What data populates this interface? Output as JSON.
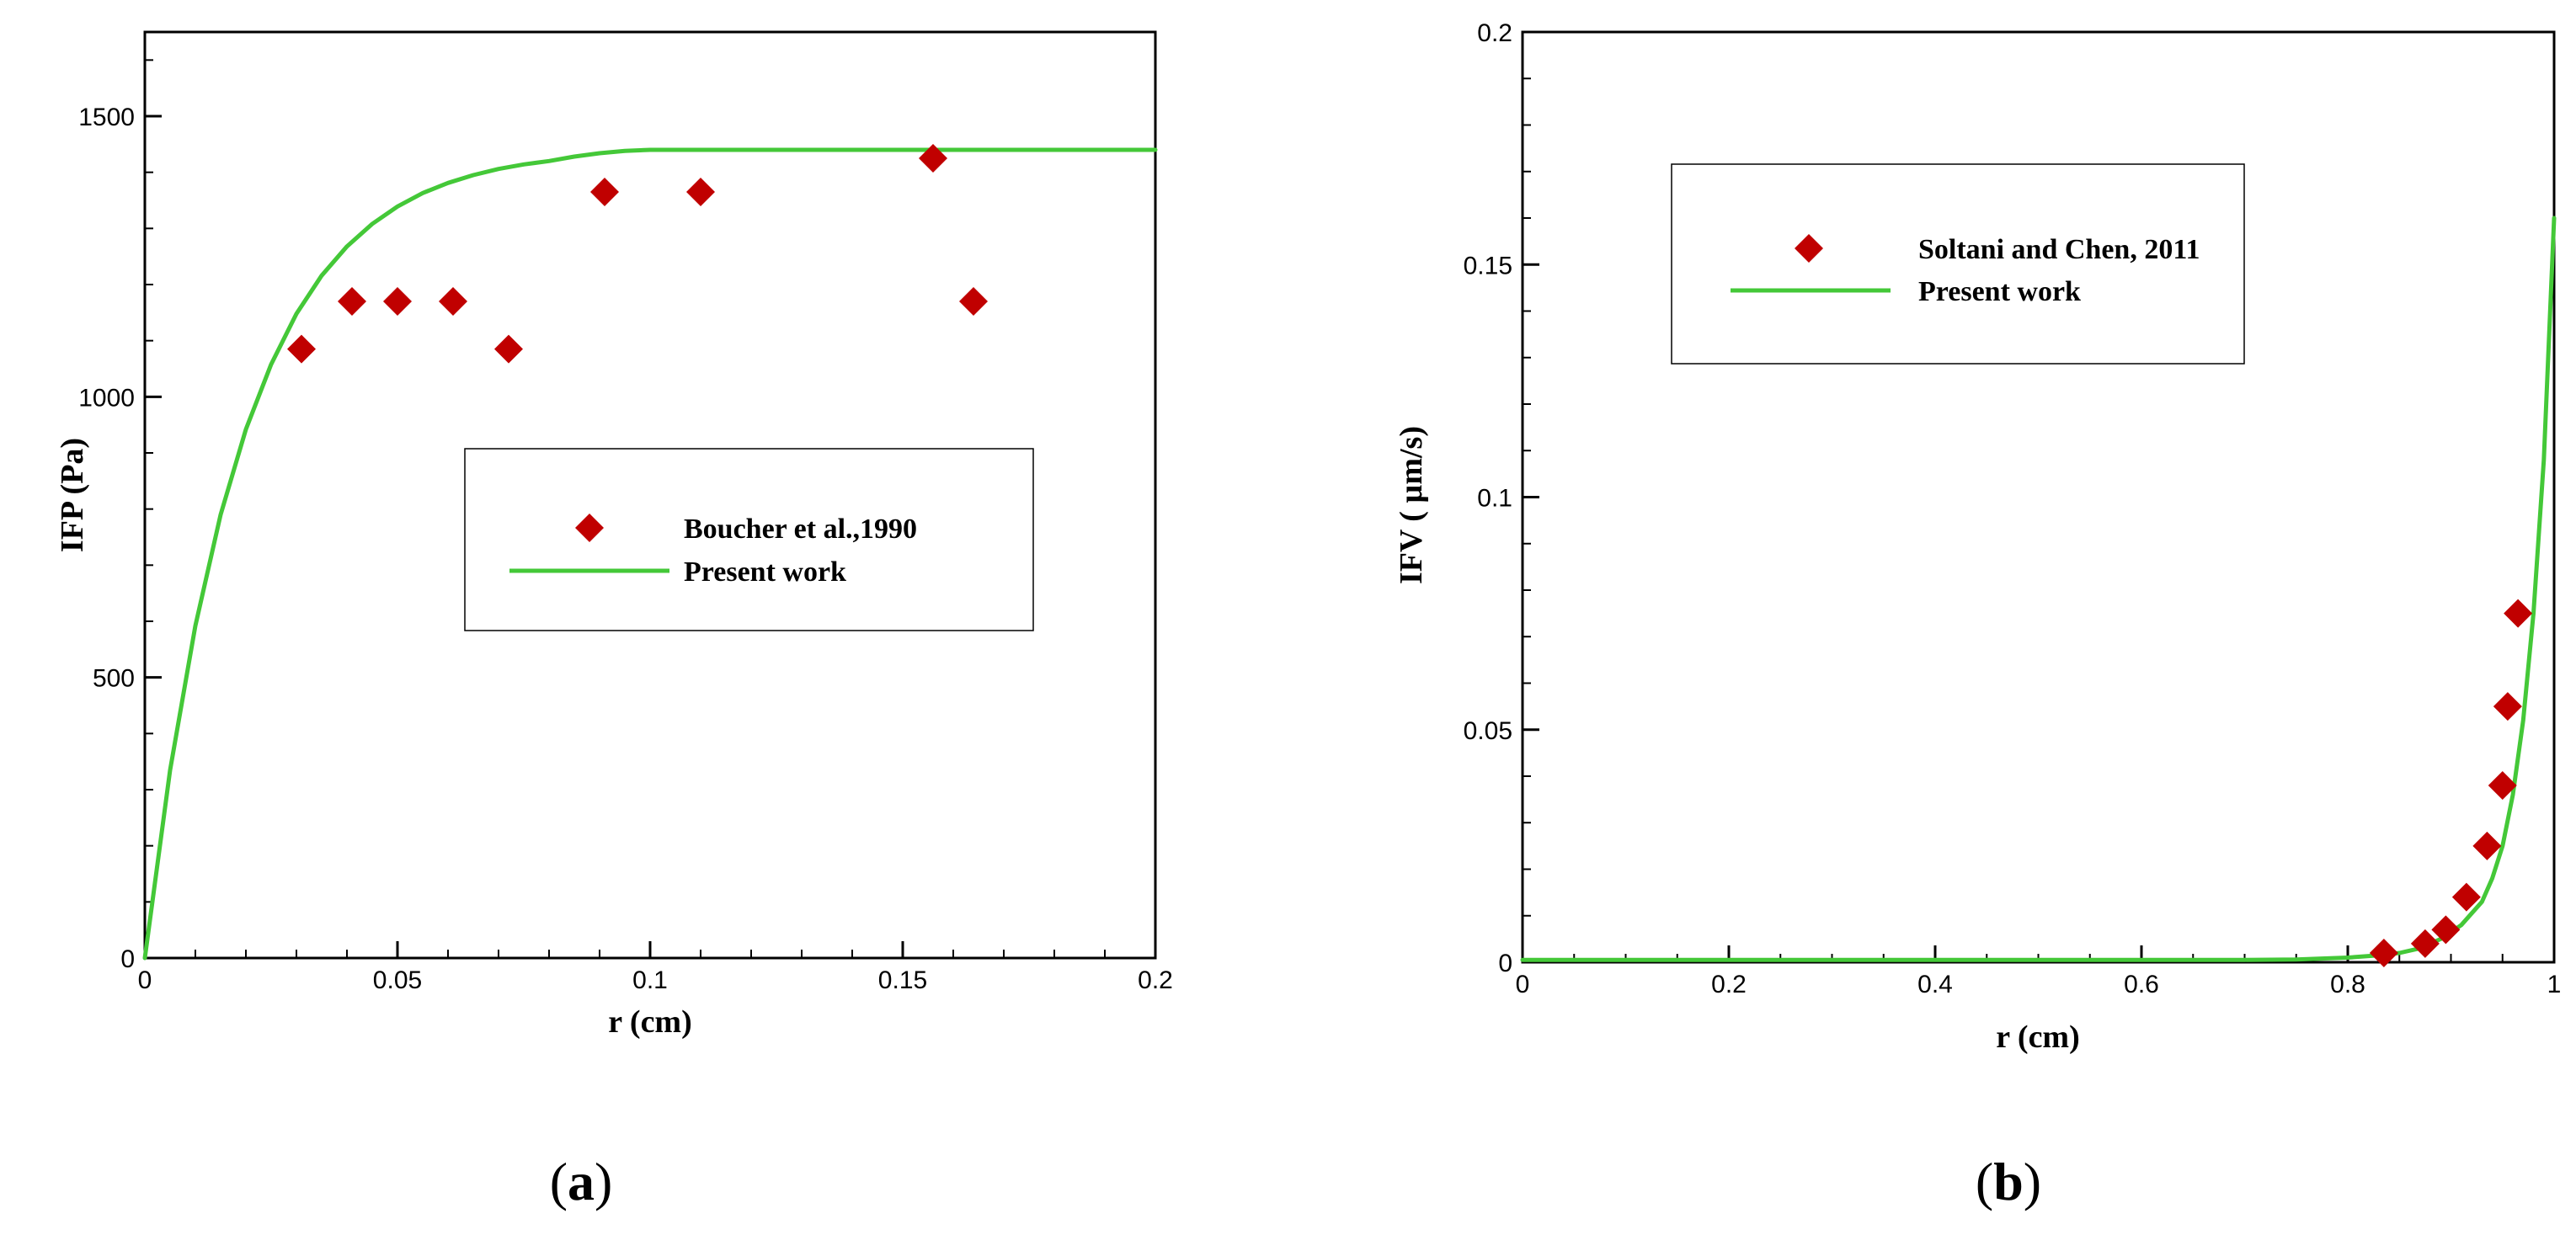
{
  "chart_data": [
    {
      "type": "line",
      "panel_label": {
        "open": "(",
        "letter": "a",
        "close": ")"
      },
      "xlabel": "r (cm)",
      "ylabel": "IFP (Pa)",
      "xlim": [
        0,
        0.2
      ],
      "ylim": [
        0,
        1650
      ],
      "xticks": [
        {
          "value": 0,
          "label": "0"
        },
        {
          "value": 0.05,
          "label": "0.05"
        },
        {
          "value": 0.1,
          "label": "0.1"
        },
        {
          "value": 0.15,
          "label": "0.15"
        },
        {
          "value": 0.2,
          "label": "0.2"
        }
      ],
      "yticks": [
        {
          "value": 0,
          "label": "0"
        },
        {
          "value": 500,
          "label": "500"
        },
        {
          "value": 1000,
          "label": "1000"
        },
        {
          "value": 1500,
          "label": "1500"
        }
      ],
      "grid": false,
      "legend_position": "center-right",
      "series": [
        {
          "name": "Boucher et al.,1990",
          "kind": "scatter",
          "marker": "diamond",
          "color": "#c00000",
          "x": [
            0.031,
            0.041,
            0.05,
            0.061,
            0.072,
            0.091,
            0.11,
            0.156,
            0.164
          ],
          "y": [
            1085,
            1170,
            1170,
            1170,
            1085,
            1365,
            1365,
            1425,
            1170
          ]
        },
        {
          "name": "Present work",
          "kind": "line",
          "color": "#44c838",
          "x": [
            0,
            0.005,
            0.01,
            0.015,
            0.02,
            0.025,
            0.03,
            0.035,
            0.04,
            0.045,
            0.05,
            0.055,
            0.06,
            0.065,
            0.07,
            0.075,
            0.08,
            0.085,
            0.09,
            0.095,
            0.1,
            0.11,
            0.12,
            0.13,
            0.14,
            0.15,
            0.16,
            0.17,
            0.18,
            0.19,
            0.2
          ],
          "y": [
            0,
            335,
            592,
            790,
            942,
            1058,
            1148,
            1216,
            1268,
            1308,
            1339,
            1363,
            1381,
            1395,
            1406,
            1414,
            1420,
            1428,
            1434,
            1438,
            1440,
            1440,
            1440,
            1440,
            1440,
            1440,
            1440,
            1440,
            1440,
            1440,
            1440
          ]
        }
      ]
    },
    {
      "type": "line",
      "panel_label": {
        "open": "(",
        "letter": "b",
        "close": ")"
      },
      "xlabel": "r (cm)",
      "ylabel": "IFV ( µm/s)",
      "xlim": [
        0,
        1
      ],
      "ylim": [
        0,
        0.2
      ],
      "xticks": [
        {
          "value": 0,
          "label": "0"
        },
        {
          "value": 0.2,
          "label": "0.2"
        },
        {
          "value": 0.4,
          "label": "0.4"
        },
        {
          "value": 0.6,
          "label": "0.6"
        },
        {
          "value": 0.8,
          "label": "0.8"
        },
        {
          "value": 1,
          "label": "1"
        }
      ],
      "yticks": [
        {
          "value": 0,
          "label": "0"
        },
        {
          "value": 0.05,
          "label": "0.05"
        },
        {
          "value": 0.1,
          "label": "0.1"
        },
        {
          "value": 0.15,
          "label": "0.15"
        },
        {
          "value": 0.2,
          "label": "0.2"
        }
      ],
      "grid": false,
      "legend_position": "top-left",
      "series": [
        {
          "name": "Soltani and Chen, 2011",
          "kind": "scatter",
          "marker": "diamond",
          "color": "#c00000",
          "x": [
            0.835,
            0.875,
            0.895,
            0.915,
            0.935,
            0.95,
            0.955,
            0.965
          ],
          "y": [
            0.002,
            0.004,
            0.007,
            0.014,
            0.025,
            0.038,
            0.055,
            0.075
          ]
        },
        {
          "name": "Present work",
          "kind": "line",
          "color": "#44c838",
          "x": [
            0,
            0.2,
            0.4,
            0.6,
            0.7,
            0.75,
            0.8,
            0.83,
            0.85,
            0.87,
            0.89,
            0.91,
            0.93,
            0.94,
            0.95,
            0.96,
            0.97,
            0.98,
            0.99,
            1.0
          ],
          "y": [
            0.0005,
            0.0005,
            0.0005,
            0.0005,
            0.0005,
            0.0006,
            0.001,
            0.0015,
            0.002,
            0.003,
            0.005,
            0.008,
            0.013,
            0.018,
            0.025,
            0.036,
            0.052,
            0.075,
            0.108,
            0.16
          ]
        }
      ]
    }
  ]
}
